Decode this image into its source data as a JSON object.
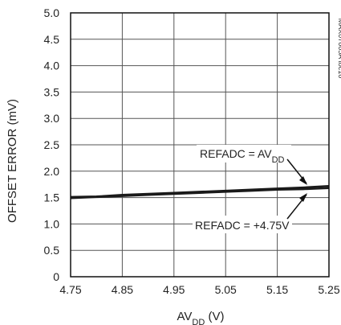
{
  "chart_data": {
    "type": "line",
    "title": "",
    "xlabel": {
      "main": "AV",
      "sub": "DD",
      "unit": " (V)"
    },
    "ylabel": "OFFSET ERROR (mV)",
    "xlim": [
      4.75,
      5.25
    ],
    "ylim": [
      0,
      5.0
    ],
    "x_ticks": [
      4.75,
      4.85,
      4.95,
      5.05,
      5.15,
      5.25
    ],
    "x_tick_labels": [
      "4.75",
      "4.85",
      "4.95",
      "5.05",
      "5.15",
      "5.25"
    ],
    "y_ticks": [
      0,
      0.5,
      1.0,
      1.5,
      2.0,
      2.5,
      3.0,
      3.5,
      4.0,
      4.5,
      5.0
    ],
    "y_tick_labels": [
      "0",
      "0.5",
      "1.0",
      "1.5",
      "2.0",
      "2.5",
      "3.0",
      "3.5",
      "4.0",
      "4.5",
      "5.0"
    ],
    "grid": true,
    "series": [
      {
        "name": "REFADC = AVDD",
        "x": [
          4.75,
          4.8,
          4.85,
          4.9,
          4.95,
          5.0,
          5.05,
          5.1,
          5.15,
          5.2,
          5.25
        ],
        "y": [
          1.51,
          1.52,
          1.55,
          1.57,
          1.59,
          1.61,
          1.63,
          1.65,
          1.67,
          1.69,
          1.72
        ]
      },
      {
        "name": "REFADC = +4.75V",
        "x": [
          4.75,
          4.8,
          4.85,
          4.9,
          4.95,
          5.0,
          5.05,
          5.1,
          5.15,
          5.2,
          5.25
        ],
        "y": [
          1.49,
          1.51,
          1.53,
          1.55,
          1.57,
          1.59,
          1.61,
          1.63,
          1.65,
          1.66,
          1.68
        ]
      }
    ],
    "annotations": [
      {
        "text_main": "REFADC = AV",
        "text_sub": "DD",
        "series_index": 0
      },
      {
        "text_main": "REFADC = +4.75V",
        "text_sub": "",
        "series_index": 1
      }
    ],
    "figure_id": "MAX07665A toc16",
    "line_color": "#1a1a1a"
  }
}
